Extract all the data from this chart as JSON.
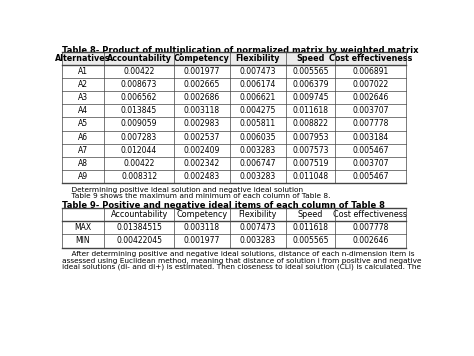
{
  "title8": "Table 8- Product of multiplication of normalized matrix by weighted matrix",
  "headers8": [
    "Alternatives",
    "Accountability",
    "Competency",
    "Flexibility",
    "Speed",
    "Cost effectiveness"
  ],
  "rows8": [
    [
      "A1",
      "0.00422",
      "0.001977",
      "0.007473",
      "0.005565",
      "0.006891"
    ],
    [
      "A2",
      "0.008673",
      "0.002665",
      "0.006174",
      "0.006379",
      "0.007022"
    ],
    [
      "A3",
      "0.006562",
      "0.002686",
      "0.006621",
      "0.009745",
      "0.002646"
    ],
    [
      "A4",
      "0.013845",
      "0.003118",
      "0.004275",
      "0.011618",
      "0.003707"
    ],
    [
      "A5",
      "0.009059",
      "0.002983",
      "0.005811",
      "0.008822",
      "0.007778"
    ],
    [
      "A6",
      "0.007283",
      "0.002537",
      "0.006035",
      "0.007953",
      "0.003184"
    ],
    [
      "A7",
      "0.012044",
      "0.002409",
      "0.003283",
      "0.007573",
      "0.005467"
    ],
    [
      "A8",
      "0.00422",
      "0.002342",
      "0.006747",
      "0.007519",
      "0.003707"
    ],
    [
      "A9",
      "0.008312",
      "0.002483",
      "0.003283",
      "0.011048",
      "0.005467"
    ]
  ],
  "note_line1": "    Determining positive ideal solution and negative ideal solution",
  "note_line2": "    Table 9 shows the maximum and minimum of each column of Table 8.",
  "title9": "Table 9- Positive and negative ideal items of each column of Table 8",
  "headers9": [
    "",
    "Accountability",
    "Competency",
    "Flexibility",
    "Speed",
    "Cost effectiveness"
  ],
  "rows9": [
    [
      "MAX",
      "0.01384515",
      "0.003118",
      "0.007473",
      "0.011618",
      "0.007778"
    ],
    [
      "MIN",
      "0.00422045",
      "0.001977",
      "0.003283",
      "0.005565",
      "0.002646"
    ]
  ],
  "footer_text": "    After determining positive and negative ideal solutions, distance of each n-dimension item is\nassessed using Euclidean method, meaning that distance of solution i from positive and negative\nideal solutions (di- and di+) is estimated. Then closeness to ideal solution (CLi) is calculated. The",
  "bg_color": "#ffffff",
  "grid_color": "#444444",
  "text_color": "#000000",
  "title_fontsize": 6.0,
  "header_fontsize": 5.8,
  "cell_fontsize": 5.5,
  "note_fontsize": 5.3,
  "footer_fontsize": 5.3
}
